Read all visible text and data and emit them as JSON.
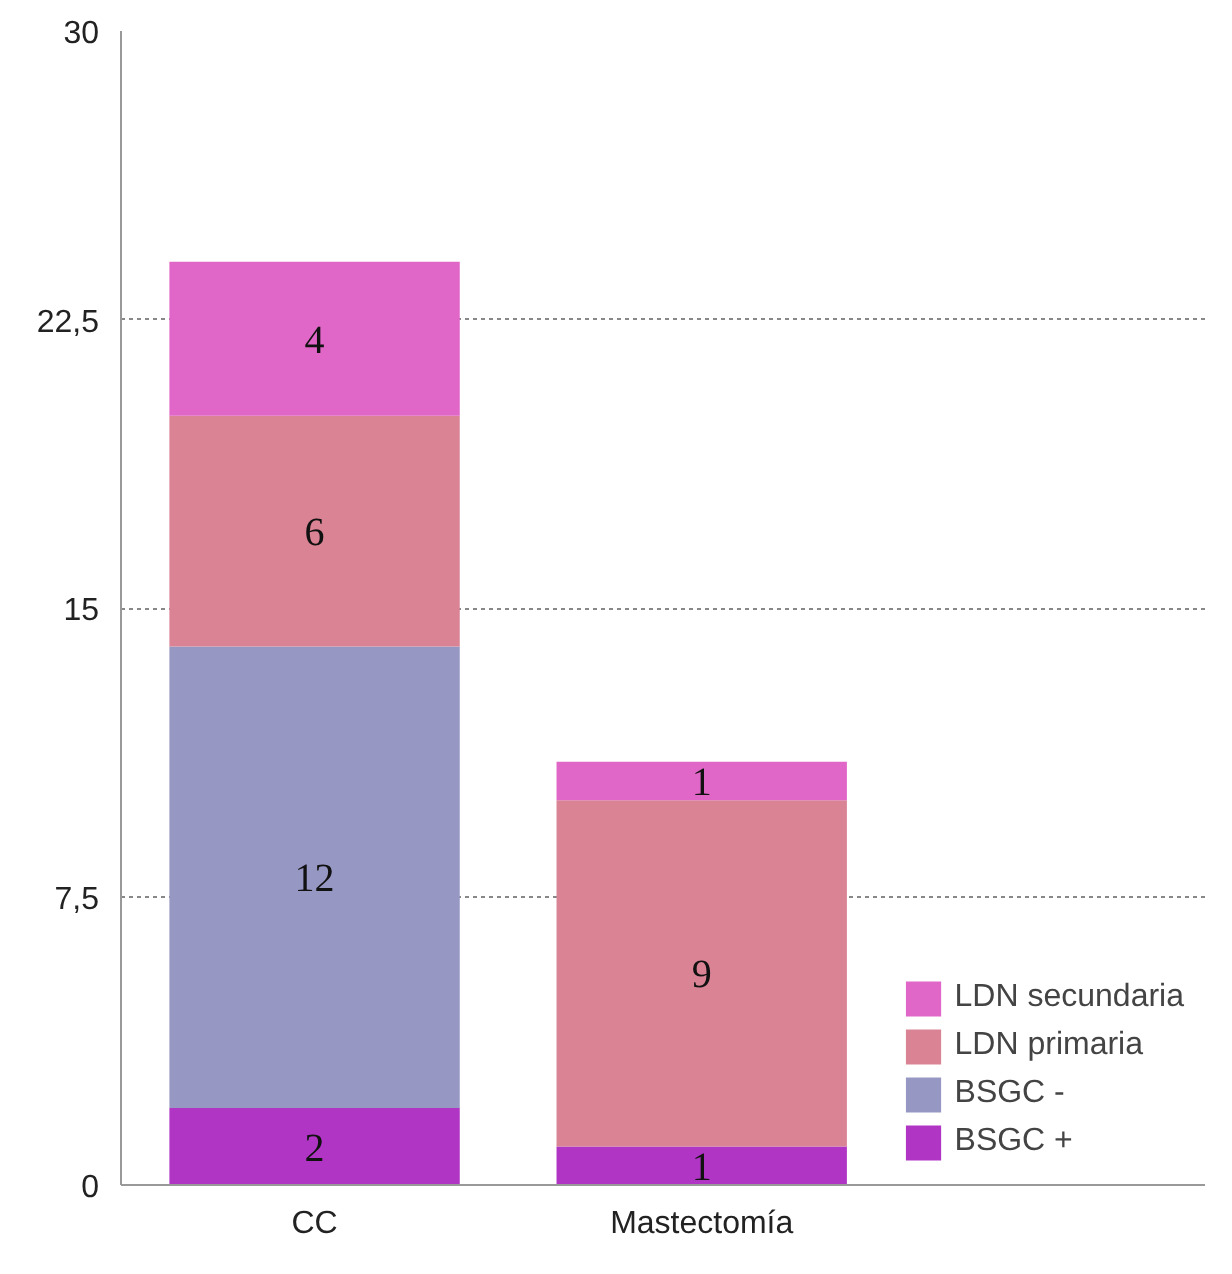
{
  "chart_data": {
    "type": "bar",
    "stacked": true,
    "categories": [
      "CC",
      "Mastectomía"
    ],
    "series": [
      {
        "name": "BSGC +",
        "color": "#b035c4",
        "values": [
          2,
          1
        ],
        "value_labels": [
          "2",
          "1"
        ]
      },
      {
        "name": "BSGC -",
        "color": "#9797c4",
        "values": [
          12,
          0
        ],
        "value_labels": [
          "12",
          null
        ]
      },
      {
        "name": "LDN primaria",
        "color": "#d98394",
        "values": [
          6,
          9
        ],
        "value_labels": [
          "6",
          "9"
        ]
      },
      {
        "name": "LDN secundaria",
        "color": "#e066c8",
        "values": [
          4,
          1
        ],
        "value_labels": [
          "4",
          "1"
        ]
      }
    ],
    "ylim": [
      0,
      30
    ],
    "yticks": [
      0,
      {
        "value": 7.5,
        "label": "7,5"
      },
      15,
      {
        "value": 22.5,
        "label": "22,5"
      },
      30
    ],
    "grid": "y",
    "legend": "bottom right"
  }
}
